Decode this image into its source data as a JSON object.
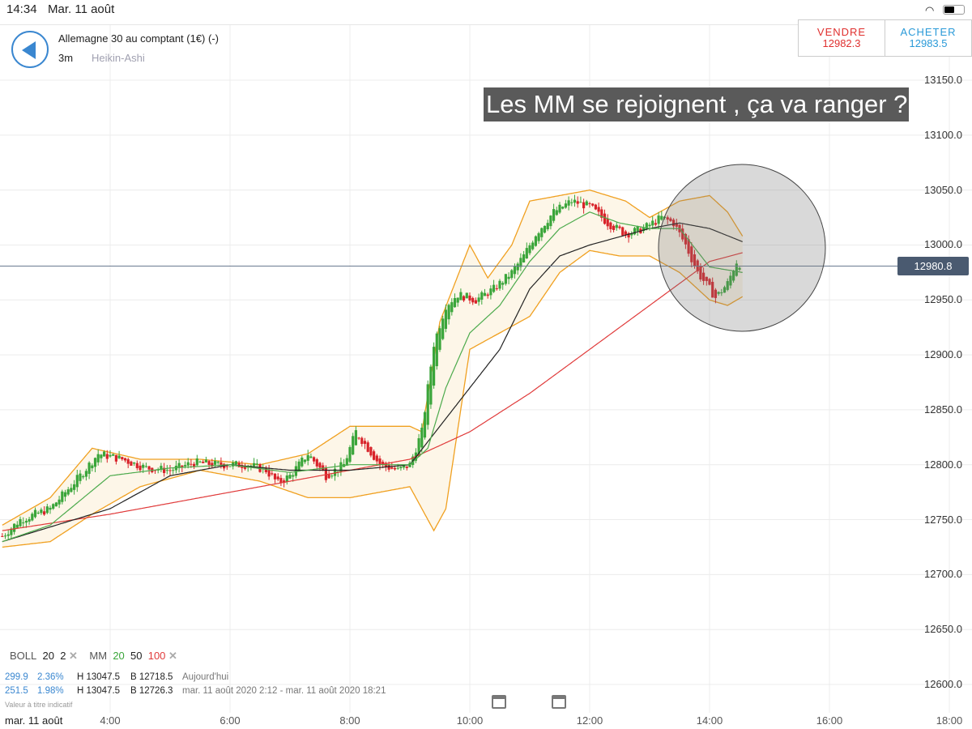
{
  "status": {
    "time": "14:34",
    "date": "Mar. 11 août",
    "icons": [
      "wifi-icon",
      "battery-icon"
    ]
  },
  "instrument": {
    "name": "Allemagne 30 au comptant (1€) (-)",
    "timeframe": "3m",
    "chart_style": "Heikin-Ashi"
  },
  "trade": {
    "sell_label": "VENDRE",
    "sell_price": "12982.3",
    "buy_label": "ACHETER",
    "buy_price": "12983.5",
    "sell_color": "#e0302f",
    "buy_color": "#2a9ad8"
  },
  "annotation": "Les MM se rejoignent , ça va ranger ?",
  "indicators": {
    "boll_label": "BOLL",
    "boll_p1": "20",
    "boll_p2": "2",
    "mm_label": "MM",
    "mm_20": "20",
    "mm_50": "50",
    "mm_100": "100"
  },
  "stats": [
    {
      "range": "299.9",
      "pct": "2.36%",
      "high": "H 13047.5",
      "low": "B 12718.5",
      "period": "Aujourd'hui"
    },
    {
      "range": "251.5",
      "pct": "1.98%",
      "high": "H 13047.5",
      "low": "B 12726.3",
      "period": "mar. 11 août 2020 2:12 - mar. 11 août 2020 18:21"
    }
  ],
  "disclaimer": "Valeur à titre indicatif",
  "x_date": "mar. 11 août",
  "chart_data": {
    "type": "candlestick",
    "ylim": [
      12590,
      13160
    ],
    "xlim": [
      "2:00",
      "18:00"
    ],
    "y_ticks": [
      "13150.0",
      "13100.0",
      "13050.0",
      "13000.0",
      "12950.0",
      "12900.0",
      "12850.0",
      "12800.0",
      "12750.0",
      "12700.0",
      "12650.0",
      "12600.0"
    ],
    "x_ticks": [
      "4:00",
      "6:00",
      "8:00",
      "10:00",
      "12:00",
      "14:00",
      "16:00",
      "18:00"
    ],
    "current_price": "12980.8",
    "grid": true,
    "colors": {
      "up": "#3aa53a",
      "down": "#d8232a",
      "mm20": "#4caa4c",
      "mm50": "#222222",
      "mm100": "#e03a3a",
      "boll": "#f0a020"
    },
    "close": [
      [
        2.2,
        12735
      ],
      [
        2.5,
        12750
      ],
      [
        3.0,
        12760
      ],
      [
        3.5,
        12790
      ],
      [
        3.8,
        12810
      ],
      [
        4.2,
        12805
      ],
      [
        4.6,
        12797
      ],
      [
        5.0,
        12795
      ],
      [
        5.4,
        12802
      ],
      [
        5.8,
        12800
      ],
      [
        6.3,
        12800
      ],
      [
        6.6,
        12795
      ],
      [
        6.8,
        12783
      ],
      [
        7.0,
        12790
      ],
      [
        7.3,
        12810
      ],
      [
        7.6,
        12790
      ],
      [
        7.9,
        12800
      ],
      [
        8.1,
        12830
      ],
      [
        8.3,
        12815
      ],
      [
        8.5,
        12800
      ],
      [
        8.8,
        12795
      ],
      [
        9.0,
        12800
      ],
      [
        9.2,
        12830
      ],
      [
        9.4,
        12910
      ],
      [
        9.6,
        12945
      ],
      [
        9.8,
        12955
      ],
      [
        10.1,
        12950
      ],
      [
        10.4,
        12960
      ],
      [
        10.7,
        12975
      ],
      [
        10.9,
        12990
      ],
      [
        11.1,
        13010
      ],
      [
        11.4,
        13030
      ],
      [
        11.7,
        13040
      ],
      [
        12.0,
        13035
      ],
      [
        12.3,
        13020
      ],
      [
        12.6,
        13010
      ],
      [
        12.9,
        13015
      ],
      [
        13.2,
        13025
      ],
      [
        13.4,
        13020
      ],
      [
        13.6,
        13000
      ],
      [
        13.8,
        12975
      ],
      [
        14.0,
        12960
      ],
      [
        14.1,
        12952
      ],
      [
        14.3,
        12965
      ],
      [
        14.45,
        12985
      ],
      [
        14.55,
        12981
      ]
    ],
    "mm20": [
      [
        2.2,
        12730
      ],
      [
        3,
        12745
      ],
      [
        4,
        12790
      ],
      [
        5,
        12797
      ],
      [
        6,
        12800
      ],
      [
        7,
        12793
      ],
      [
        8,
        12800
      ],
      [
        9,
        12800
      ],
      [
        9.3,
        12815
      ],
      [
        9.6,
        12870
      ],
      [
        10,
        12920
      ],
      [
        10.5,
        12945
      ],
      [
        11,
        12985
      ],
      [
        11.5,
        13015
      ],
      [
        12,
        13030
      ],
      [
        12.5,
        13020
      ],
      [
        13,
        13015
      ],
      [
        13.5,
        13015
      ],
      [
        14,
        12980
      ],
      [
        14.55,
        12975
      ]
    ],
    "mm50": [
      [
        2.2,
        12730
      ],
      [
        4,
        12760
      ],
      [
        5,
        12790
      ],
      [
        6,
        12800
      ],
      [
        7,
        12795
      ],
      [
        8,
        12795
      ],
      [
        9,
        12800
      ],
      [
        9.5,
        12835
      ],
      [
        10,
        12870
      ],
      [
        10.5,
        12905
      ],
      [
        11,
        12960
      ],
      [
        11.5,
        12990
      ],
      [
        12,
        13000
      ],
      [
        13,
        13015
      ],
      [
        13.5,
        13020
      ],
      [
        14,
        13015
      ],
      [
        14.55,
        13003
      ]
    ],
    "mm100": [
      [
        2.2,
        12740
      ],
      [
        4,
        12755
      ],
      [
        6,
        12775
      ],
      [
        8,
        12795
      ],
      [
        9,
        12805
      ],
      [
        10,
        12830
      ],
      [
        11,
        12865
      ],
      [
        12,
        12905
      ],
      [
        13,
        12945
      ],
      [
        13.5,
        12965
      ],
      [
        14,
        12985
      ],
      [
        14.55,
        12993
      ]
    ],
    "boll_upper": [
      [
        2.2,
        12745
      ],
      [
        3,
        12770
      ],
      [
        3.7,
        12815
      ],
      [
        4.5,
        12805
      ],
      [
        5.5,
        12805
      ],
      [
        6.5,
        12800
      ],
      [
        7.3,
        12810
      ],
      [
        8,
        12835
      ],
      [
        9,
        12835
      ],
      [
        9.2,
        12830
      ],
      [
        9.5,
        12930
      ],
      [
        10,
        13000
      ],
      [
        10.3,
        12970
      ],
      [
        10.7,
        13000
      ],
      [
        11,
        13040
      ],
      [
        11.5,
        13045
      ],
      [
        12,
        13050
      ],
      [
        12.6,
        13040
      ],
      [
        13,
        13025
      ],
      [
        13.5,
        13040
      ],
      [
        14,
        13045
      ],
      [
        14.3,
        13030
      ],
      [
        14.55,
        13008
      ]
    ],
    "boll_lower": [
      [
        2.2,
        12725
      ],
      [
        3,
        12730
      ],
      [
        3.7,
        12755
      ],
      [
        4.5,
        12780
      ],
      [
        5.5,
        12795
      ],
      [
        6.5,
        12785
      ],
      [
        7.3,
        12770
      ],
      [
        8,
        12770
      ],
      [
        9,
        12780
      ],
      [
        9.2,
        12760
      ],
      [
        9.4,
        12740
      ],
      [
        9.6,
        12760
      ],
      [
        10,
        12905
      ],
      [
        10.5,
        12920
      ],
      [
        11,
        12935
      ],
      [
        11.5,
        12975
      ],
      [
        12,
        12995
      ],
      [
        12.5,
        12990
      ],
      [
        13,
        12990
      ],
      [
        13.5,
        12975
      ],
      [
        14,
        12950
      ],
      [
        14.3,
        12945
      ],
      [
        14.55,
        12953
      ]
    ]
  }
}
